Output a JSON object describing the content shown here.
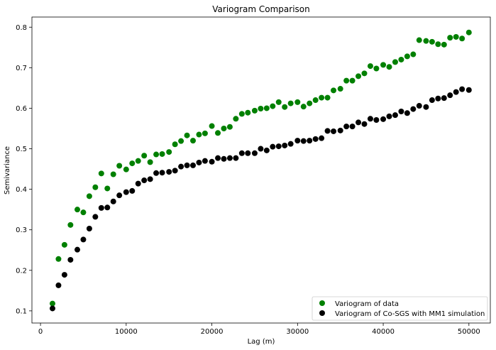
{
  "chart_data": {
    "type": "scatter",
    "title": "Variogram Comparison",
    "xlabel": "Lag (m)",
    "ylabel": "Semivariance",
    "xlim": [
      -1000,
      52500
    ],
    "ylim": [
      0.07,
      0.825
    ],
    "xticks": [
      0,
      10000,
      20000,
      30000,
      40000,
      50000
    ],
    "yticks": [
      0.1,
      0.2,
      0.3,
      0.4,
      0.5,
      0.6,
      0.7,
      0.8
    ],
    "grid": false,
    "legend_position": "lower-right",
    "x": [
      1400,
      2100,
      2800,
      3500,
      4300,
      5000,
      5700,
      6400,
      7100,
      7800,
      8500,
      9200,
      10000,
      10700,
      11400,
      12100,
      12800,
      13500,
      14200,
      15000,
      15700,
      16400,
      17100,
      17800,
      18500,
      19200,
      20000,
      20700,
      21400,
      22100,
      22800,
      23500,
      24200,
      25000,
      25700,
      26400,
      27100,
      27800,
      28500,
      29200,
      30000,
      30700,
      31400,
      32100,
      32800,
      33500,
      34200,
      35000,
      35700,
      36400,
      37100,
      37800,
      38500,
      39200,
      40000,
      40700,
      41400,
      42100,
      42800,
      43500,
      44200,
      45000,
      45700,
      46400,
      47100,
      47800,
      48500,
      49200,
      50000
    ],
    "series": [
      {
        "name": "Variogram of data",
        "color": "#008000",
        "values": [
          0.118,
          0.228,
          0.263,
          0.312,
          0.35,
          0.343,
          0.383,
          0.405,
          0.439,
          0.402,
          0.437,
          0.458,
          0.449,
          0.464,
          0.47,
          0.483,
          0.467,
          0.486,
          0.487,
          0.492,
          0.511,
          0.519,
          0.533,
          0.52,
          0.535,
          0.538,
          0.556,
          0.539,
          0.55,
          0.554,
          0.574,
          0.586,
          0.589,
          0.594,
          0.599,
          0.6,
          0.605,
          0.615,
          0.603,
          0.612,
          0.615,
          0.604,
          0.612,
          0.62,
          0.626,
          0.626,
          0.644,
          0.648,
          0.668,
          0.668,
          0.679,
          0.686,
          0.704,
          0.698,
          0.707,
          0.702,
          0.714,
          0.72,
          0.728,
          0.733,
          0.768,
          0.766,
          0.764,
          0.758,
          0.757,
          0.774,
          0.776,
          0.772,
          0.787
        ]
      },
      {
        "name": "Variogram of Co-SGS with MM1 simulation",
        "color": "#000000",
        "values": [
          0.106,
          0.163,
          0.189,
          0.226,
          0.251,
          0.276,
          0.303,
          0.332,
          0.354,
          0.355,
          0.37,
          0.385,
          0.393,
          0.396,
          0.414,
          0.422,
          0.425,
          0.44,
          0.441,
          0.443,
          0.446,
          0.456,
          0.459,
          0.459,
          0.466,
          0.47,
          0.468,
          0.477,
          0.475,
          0.477,
          0.477,
          0.489,
          0.489,
          0.489,
          0.5,
          0.496,
          0.505,
          0.506,
          0.508,
          0.512,
          0.52,
          0.519,
          0.52,
          0.524,
          0.526,
          0.544,
          0.543,
          0.545,
          0.555,
          0.555,
          0.565,
          0.561,
          0.574,
          0.571,
          0.573,
          0.58,
          0.583,
          0.592,
          0.588,
          0.598,
          0.606,
          0.603,
          0.62,
          0.624,
          0.625,
          0.632,
          0.64,
          0.647,
          0.645
        ]
      }
    ]
  }
}
